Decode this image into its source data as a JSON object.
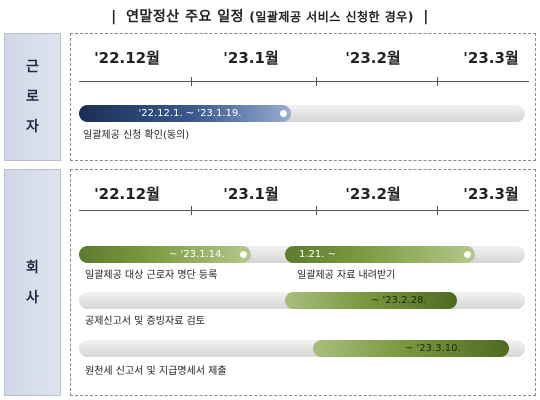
{
  "title": {
    "main": "연말정산 주요 일정",
    "note": "(일괄제공 서비스 신청한 경우)",
    "bar": "|"
  },
  "months": [
    "'22.12월",
    "'23.1월",
    "'23.2월",
    "'23.3월"
  ],
  "worker": {
    "label_chars": [
      "근",
      "로",
      "자"
    ],
    "tasks": [
      {
        "bar_text": "'22.12.1. ~ '23.1.19.",
        "label": "일괄제공 신청 확인(동의)"
      }
    ]
  },
  "company": {
    "label_chars": [
      "회",
      "사"
    ],
    "tasks": [
      {
        "bar_text": "~ '23.1.14.",
        "label": "일괄제공 대상 근로자 명단 등록"
      },
      {
        "bar_text": "1.21. ~",
        "label": "일괄제공 자료 내려받기"
      },
      {
        "bar_text": "~ '23.2.28.",
        "label": "공제신고서 및 증빙자료 검토"
      },
      {
        "bar_text": "~ '23.3.10.",
        "label": "원천세 신고서 및 지급명세서 제출"
      }
    ]
  },
  "colors": {
    "worker_bar": "#2c4778",
    "company_bar": "#7a9a40",
    "label_box": "#d7dcea"
  }
}
